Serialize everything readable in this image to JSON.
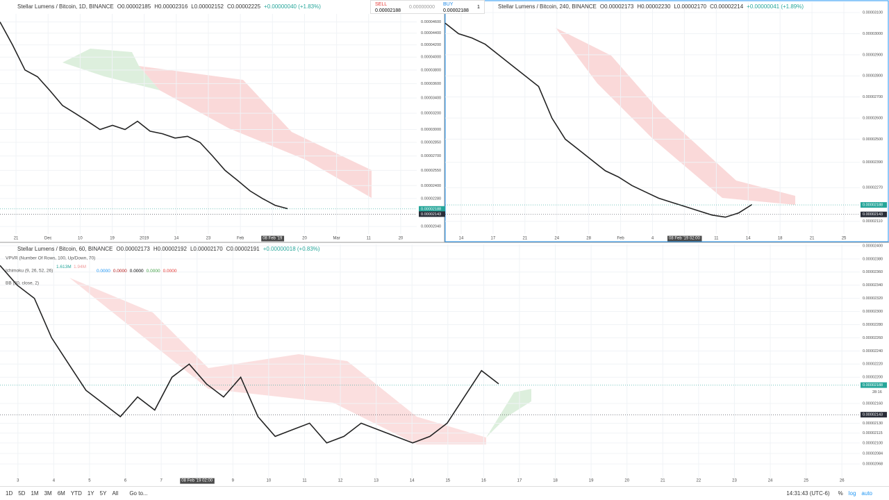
{
  "panels": [
    {
      "title": "Stellar Lumens / Bitcoin, 1D, BINANCE",
      "ohlc": [
        "O0.00002185",
        "H0.00002316",
        "L0.00002152",
        "C0.00002225"
      ],
      "change": "+0.00000040 (+1.83%)",
      "log": true,
      "ylim": [
        1.98e-05,
        4.75e-05
      ],
      "yticks": [
        {
          "value": 4.6e-05,
          "label": "0.00004600"
        },
        {
          "value": 4.4e-05,
          "label": "0.00004400"
        },
        {
          "value": 4.2e-05,
          "label": "0.00004200"
        },
        {
          "value": 4e-05,
          "label": "0.00004000"
        },
        {
          "value": 3.8e-05,
          "label": "0.00003800"
        },
        {
          "value": 3.6e-05,
          "label": "0.00003600"
        },
        {
          "value": 3.4e-05,
          "label": "0.00003400"
        },
        {
          "value": 3.2e-05,
          "label": "0.00003200"
        },
        {
          "value": 3e-05,
          "label": "0.00003000"
        },
        {
          "value": 2.85e-05,
          "label": "0.00002850"
        },
        {
          "value": 2.7e-05,
          "label": "0.00002700"
        },
        {
          "value": 2.55e-05,
          "label": "0.00002550"
        },
        {
          "value": 2.4e-05,
          "label": "0.00002400"
        },
        {
          "value": 2.28e-05,
          "label": "0.00002280"
        },
        {
          "value": 2.04e-05,
          "label": "0.00002040"
        }
      ],
      "price_labels": [
        "0.00002188",
        "0.00002143"
      ],
      "x_labels": [
        "21",
        "Dec",
        "10",
        "19",
        "2019",
        "14",
        "23",
        "Feb",
        "08 Feb '19",
        "20",
        "Mar",
        "11",
        "20"
      ],
      "closes": [
        4.6e-05,
        4.2e-05,
        3.8e-05,
        3.7e-05,
        3.5e-05,
        3.3e-05,
        3.2e-05,
        3.1e-05,
        3e-05,
        3.05e-05,
        3e-05,
        3.1e-05,
        2.98e-05,
        2.95e-05,
        2.9e-05,
        2.92e-05,
        2.85e-05,
        2.7e-05,
        2.55e-05,
        2.45e-05,
        2.35e-05,
        2.28e-05,
        2.22e-05,
        2.19e-05
      ]
    },
    {
      "title": "Stellar Lumens / Bitcoin, 240, BINANCE",
      "ohlc": [
        "O0.00002173",
        "H0.00002230",
        "L0.00002170",
        "C0.00002214"
      ],
      "change": "+0.00000041 (+1.89%)",
      "log": false,
      "ylim": [
        2.05e-05,
        3.15e-05
      ],
      "yticks": [
        {
          "value": 3.1e-05,
          "label": "0.00003100"
        },
        {
          "value": 3e-05,
          "label": "0.00003000"
        },
        {
          "value": 2.9e-05,
          "label": "0.00002900"
        },
        {
          "value": 2.8e-05,
          "label": "0.00002800"
        },
        {
          "value": 2.7e-05,
          "label": "0.00002700"
        },
        {
          "value": 2.6e-05,
          "label": "0.00002600"
        },
        {
          "value": 2.5e-05,
          "label": "0.00002500"
        },
        {
          "value": 2.39e-05,
          "label": "0.00002390"
        },
        {
          "value": 2.27e-05,
          "label": "0.00002270"
        },
        {
          "value": 2.11e-05,
          "label": "0.00002110"
        }
      ],
      "price_labels": [
        "0.00002188",
        "0.00002143"
      ],
      "x_labels": [
        "14",
        "17",
        "21",
        "24",
        "28",
        "Feb",
        "4",
        "08 Feb '19  02:00",
        "11",
        "14",
        "18",
        "21",
        "25"
      ],
      "closes": [
        3.05e-05,
        3e-05,
        2.98e-05,
        2.95e-05,
        2.9e-05,
        2.85e-05,
        2.8e-05,
        2.75e-05,
        2.6e-05,
        2.5e-05,
        2.45e-05,
        2.4e-05,
        2.35e-05,
        2.32e-05,
        2.28e-05,
        2.25e-05,
        2.22e-05,
        2.2e-05,
        2.18e-05,
        2.16e-05,
        2.14e-05,
        2.13e-05,
        2.15e-05,
        2.19e-05
      ]
    },
    {
      "title": "Stellar Lumens / Bitcoin, 60, BINANCE",
      "ohlc": [
        "O0.00002173",
        "H0.00002192",
        "L0.00002170",
        "C0.00002191"
      ],
      "change": "+0.00000018 (+0.83%)",
      "log": false,
      "ylim": [
        2.047e-05,
        2.402e-05
      ],
      "yticks": [
        {
          "value": 2.4e-05,
          "label": "0.00002400"
        },
        {
          "value": 2.38e-05,
          "label": "0.00002380"
        },
        {
          "value": 2.36e-05,
          "label": "0.00002360"
        },
        {
          "value": 2.34e-05,
          "label": "0.00002340"
        },
        {
          "value": 2.32e-05,
          "label": "0.00002320"
        },
        {
          "value": 2.3e-05,
          "label": "0.00002300"
        },
        {
          "value": 2.28e-05,
          "label": "0.00002280"
        },
        {
          "value": 2.26e-05,
          "label": "0.00002260"
        },
        {
          "value": 2.24e-05,
          "label": "0.00002240"
        },
        {
          "value": 2.22e-05,
          "label": "0.00002220"
        },
        {
          "value": 2.2e-05,
          "label": "0.00002200"
        },
        {
          "value": 2.16e-05,
          "label": "0.00002160"
        },
        {
          "value": 2.13e-05,
          "label": "0.00002130"
        },
        {
          "value": 2.115e-05,
          "label": "0.00002115"
        },
        {
          "value": 2.1e-05,
          "label": "0.00002100"
        },
        {
          "value": 2.084e-05,
          "label": "0.00002084"
        },
        {
          "value": 2.068e-05,
          "label": "0.00002068"
        }
      ],
      "price_labels": [
        "0.00002188",
        "0.00002143"
      ],
      "countdown": "28:16",
      "indicators": [
        "VPVR (Number Of Rows, 100, Up/Down, 70)",
        "Ichimoku (9, 26, 52, 26)",
        "BB (20, close, 2)"
      ],
      "vpvr_values": [
        "1.613M",
        "1.94M"
      ],
      "ichimoku_values": [
        "0.0000",
        "0.0000",
        "0.0000",
        "0.0000",
        "0.0000"
      ],
      "x_labels": [
        "3",
        "4",
        "5",
        "6",
        "7",
        "08 Feb '19  02:00",
        "9",
        "10",
        "11",
        "12",
        "13",
        "14",
        "15",
        "16",
        "17",
        "18",
        "19",
        "20",
        "21",
        "22",
        "23",
        "24",
        "25",
        "26"
      ],
      "closes": [
        2.37e-05,
        2.34e-05,
        2.32e-05,
        2.26e-05,
        2.22e-05,
        2.18e-05,
        2.16e-05,
        2.14e-05,
        2.17e-05,
        2.15e-05,
        2.2e-05,
        2.22e-05,
        2.19e-05,
        2.17e-05,
        2.2e-05,
        2.14e-05,
        2.11e-05,
        2.12e-05,
        2.13e-05,
        2.1e-05,
        2.11e-05,
        2.13e-05,
        2.12e-05,
        2.11e-05,
        2.1e-05,
        2.11e-05,
        2.13e-05,
        2.17e-05,
        2.21e-05,
        2.19e-05
      ]
    }
  ],
  "trade": {
    "sell": "SELL",
    "sell_price": "0.00002188",
    "spread": "0.00000000",
    "buy": "BUY",
    "buy_price": "0.00002188",
    "qty": "1"
  },
  "toolbar": {
    "ranges": [
      "1D",
      "5D",
      "1M",
      "3M",
      "6M",
      "YTD",
      "1Y",
      "5Y",
      "All"
    ],
    "goto": "Go to...",
    "time": "14:31:43 (UTC-6)",
    "percent": "%",
    "log": "log",
    "auto": "auto"
  }
}
